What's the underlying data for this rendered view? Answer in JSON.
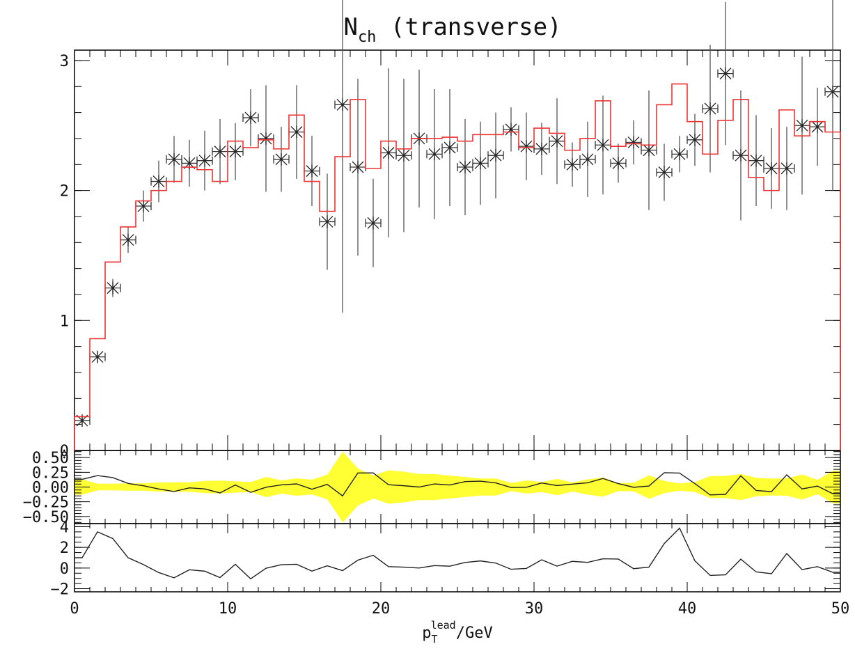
{
  "chart_data": {
    "type": "line",
    "title": {
      "main": "N",
      "sub": "ch",
      "rest": " (transverse)"
    },
    "xlabel": {
      "main": "p",
      "sub": "T",
      "sup": "lead",
      "rest": "/GeV"
    },
    "xlim": [
      0,
      50
    ],
    "x_ticks": [
      "0",
      "10",
      "20",
      "30",
      "40",
      "50"
    ],
    "panels": {
      "main": {
        "ylim": [
          0,
          3.08
        ],
        "y_ticks": [
          {
            "value": 0,
            "label": "0"
          },
          {
            "value": 1,
            "label": "1"
          },
          {
            "value": 2,
            "label": "2"
          },
          {
            "value": 3,
            "label": "3"
          }
        ],
        "data": {
          "x": [
            0.5,
            1.5,
            2.5,
            3.5,
            4.5,
            5.5,
            6.5,
            7.5,
            8.5,
            9.5,
            10.5,
            11.5,
            12.5,
            13.5,
            14.5,
            15.5,
            16.5,
            17.5,
            18.5,
            19.5,
            20.5,
            21.5,
            22.5,
            23.5,
            24.5,
            25.5,
            26.5,
            27.5,
            28.5,
            29.5,
            30.5,
            31.5,
            32.5,
            33.5,
            34.5,
            35.5,
            36.5,
            37.5,
            38.5,
            39.5,
            40.5,
            41.5,
            42.5,
            43.5,
            44.5,
            45.5,
            46.5,
            47.5,
            48.5,
            49.5
          ],
          "y": [
            0.23,
            0.72,
            1.25,
            1.62,
            1.88,
            2.07,
            2.24,
            2.21,
            2.23,
            2.3,
            2.3,
            2.56,
            2.4,
            2.24,
            2.45,
            2.15,
            1.76,
            2.66,
            2.18,
            1.75,
            2.29,
            2.27,
            2.4,
            2.28,
            2.33,
            2.18,
            2.21,
            2.27,
            2.47,
            2.34,
            2.32,
            2.38,
            2.2,
            2.24,
            2.35,
            2.21,
            2.37,
            2.31,
            2.14,
            2.28,
            2.39,
            2.63,
            2.9,
            2.27,
            2.23,
            2.17,
            2.17,
            2.5,
            2.49,
            2.76
          ],
          "yerr": [
            0.03,
            0.04,
            0.07,
            0.1,
            0.12,
            0.16,
            0.18,
            0.18,
            0.23,
            0.25,
            0.22,
            0.22,
            0.41,
            0.25,
            0.36,
            0.27,
            0.37,
            1.6,
            0.68,
            0.34,
            0.65,
            0.59,
            0.53,
            0.5,
            0.45,
            0.37,
            0.32,
            0.33,
            0.17,
            0.26,
            0.2,
            0.33,
            0.17,
            0.29,
            0.38,
            0.15,
            0.17,
            0.46,
            0.22,
            0.14,
            0.2,
            0.49,
            0.55,
            0.5,
            0.35,
            0.31,
            0.32,
            0.53,
            0.3,
            0.76
          ]
        },
        "mc": {
          "y": [
            0.26,
            0.86,
            1.45,
            1.72,
            1.92,
            2.0,
            2.07,
            2.18,
            2.16,
            2.07,
            2.38,
            2.33,
            2.39,
            2.32,
            2.58,
            2.07,
            1.84,
            2.26,
            2.7,
            2.17,
            2.38,
            2.32,
            2.4,
            2.4,
            2.41,
            2.38,
            2.43,
            2.43,
            2.45,
            2.33,
            2.48,
            2.44,
            2.31,
            2.4,
            2.69,
            2.34,
            2.36,
            2.35,
            2.66,
            2.82,
            2.53,
            2.28,
            2.54,
            2.7,
            2.1,
            2.0,
            2.62,
            2.42,
            2.53,
            2.45
          ]
        }
      },
      "ratio": {
        "ylim": [
          -0.62,
          0.62
        ],
        "y_ticks": [
          {
            "value": 0.5,
            "label": "0.50"
          },
          {
            "value": 0.25,
            "label": "0.25"
          },
          {
            "value": 0,
            "label": "0.00"
          },
          {
            "value": -0.25,
            "label": "−0.25"
          },
          {
            "value": -0.5,
            "label": "−0.50"
          }
        ]
      },
      "pull": {
        "ylim": [
          -2.3,
          4.3
        ],
        "y_ticks": [
          {
            "value": 4,
            "label": "4"
          },
          {
            "value": 2,
            "label": "2"
          },
          {
            "value": 0,
            "label": "0"
          },
          {
            "value": -2,
            "label": "−2"
          }
        ]
      }
    }
  }
}
